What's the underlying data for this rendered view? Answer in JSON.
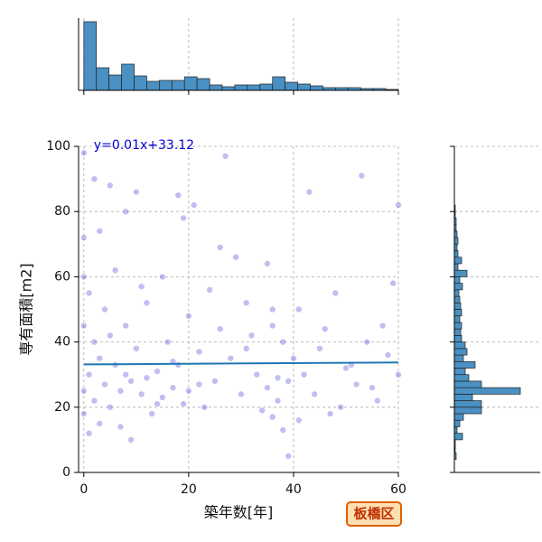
{
  "chart_data": [
    {
      "type": "scatter",
      "xlabel": "築年数[年]",
      "ylabel": "専有面積[m2]",
      "color": "#0000cd",
      "line_color": "#1f77b4",
      "annotation": "y=0.01x+33.12",
      "fit": {
        "slope": 0.01,
        "intercept": 33.12
      },
      "xlim": [
        -1,
        60
      ],
      "ylim": [
        0,
        100
      ],
      "xticks": [
        0,
        20,
        40,
        60
      ],
      "yticks": [
        0,
        20,
        40,
        60,
        80,
        100
      ],
      "grid": true,
      "x": [
        0,
        0,
        0,
        0,
        0,
        0,
        1,
        1,
        1,
        2,
        2,
        2,
        3,
        3,
        4,
        4,
        5,
        5,
        6,
        6,
        7,
        7,
        8,
        8,
        9,
        9,
        10,
        10,
        11,
        12,
        12,
        13,
        14,
        15,
        15,
        16,
        17,
        18,
        18,
        19,
        19,
        20,
        20,
        21,
        22,
        23,
        24,
        25,
        26,
        27,
        28,
        29,
        30,
        31,
        32,
        33,
        34,
        35,
        35,
        36,
        36,
        37,
        37,
        38,
        38,
        39,
        39,
        40,
        41,
        42,
        43,
        44,
        45,
        46,
        47,
        48,
        50,
        52,
        54,
        56,
        58,
        60,
        60,
        59,
        57,
        55,
        53,
        51,
        49,
        3,
        5,
        8,
        11,
        14,
        17,
        22,
        26,
        31,
        36,
        41
      ],
      "y": [
        98,
        72,
        60,
        45,
        25,
        18,
        55,
        30,
        12,
        90,
        40,
        22,
        35,
        15,
        50,
        27,
        88,
        20,
        62,
        33,
        25,
        14,
        45,
        80,
        28,
        10,
        86,
        38,
        24,
        52,
        29,
        18,
        31,
        60,
        23,
        40,
        26,
        85,
        33,
        21,
        78,
        48,
        25,
        82,
        37,
        20,
        56,
        28,
        44,
        97,
        35,
        66,
        24,
        52,
        42,
        30,
        19,
        64,
        26,
        45,
        17,
        29,
        22,
        40,
        13,
        28,
        5,
        35,
        50,
        30,
        86,
        24,
        38,
        44,
        18,
        55,
        32,
        27,
        40,
        22,
        36,
        82,
        30,
        58,
        45,
        26,
        91,
        33,
        20,
        74,
        42,
        30,
        57,
        21,
        34,
        27,
        69,
        38,
        50,
        16
      ]
    },
    {
      "type": "histogram",
      "orientation": "vertical",
      "color": "#4a90c2",
      "ylim": [
        0,
        80
      ],
      "bins": [
        0,
        2.4,
        4.8,
        7.2,
        9.6,
        12,
        14.4,
        16.8,
        19.2,
        21.6,
        24,
        26.4,
        28.8,
        31.2,
        33.6,
        36,
        38.4,
        40.8,
        43.2,
        45.6,
        48,
        50.4,
        52.8,
        55.2,
        57.6,
        60
      ],
      "counts": [
        76,
        25,
        17,
        29,
        16,
        10,
        11,
        11,
        15,
        13,
        6,
        4,
        6,
        6,
        7,
        15,
        9,
        7,
        5,
        3,
        3,
        3,
        2,
        2,
        1
      ]
    },
    {
      "type": "histogram",
      "orientation": "horizontal",
      "color": "#4a90c2",
      "xlim": [
        0,
        95
      ],
      "bins": [
        4,
        6,
        8,
        10,
        12,
        14,
        16,
        18,
        20,
        22,
        24,
        26,
        28,
        30,
        32,
        34,
        36,
        38,
        40,
        42,
        44,
        46,
        48,
        50,
        52,
        54,
        56,
        58,
        60,
        62,
        64,
        66,
        68,
        70,
        72,
        74,
        76,
        78,
        80,
        82
      ],
      "counts": [
        2,
        1,
        1,
        9,
        3,
        6,
        10,
        30,
        30,
        20,
        73,
        30,
        16,
        12,
        23,
        10,
        14,
        12,
        8,
        7,
        8,
        6,
        8,
        7,
        6,
        5,
        9,
        6,
        14,
        4,
        8,
        4,
        3,
        4,
        3,
        2,
        2,
        1,
        1
      ]
    }
  ],
  "badge": "板橋区"
}
